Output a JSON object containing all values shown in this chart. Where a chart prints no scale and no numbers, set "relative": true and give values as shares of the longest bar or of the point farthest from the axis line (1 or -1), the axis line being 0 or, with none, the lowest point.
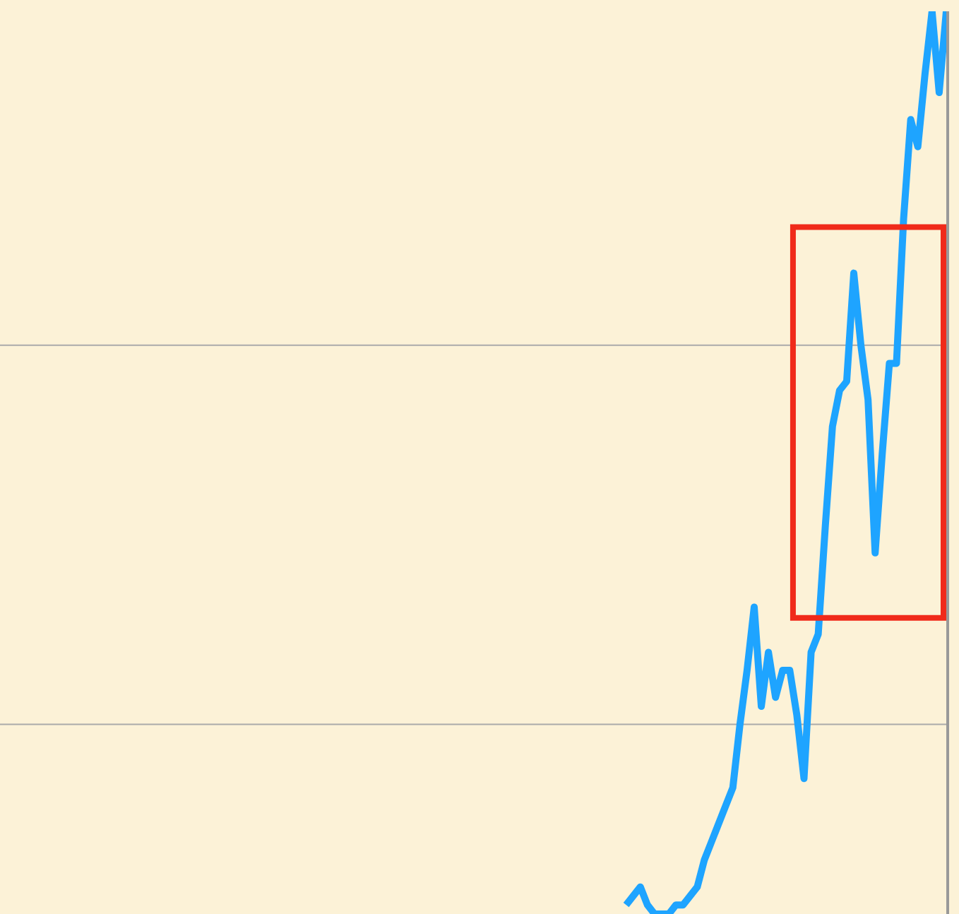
{
  "chart_data": {
    "type": "line",
    "relative": true,
    "categories": [
      null,
      null,
      null,
      null,
      null,
      null,
      null,
      null,
      null,
      null,
      null,
      null,
      null,
      null,
      null,
      null,
      null,
      null,
      null,
      null,
      null,
      null,
      null,
      null,
      null,
      null,
      null,
      null,
      null,
      null,
      null,
      null,
      null,
      null,
      null,
      null,
      null,
      null,
      null,
      null,
      null,
      null,
      null,
      null,
      null,
      null,
      null,
      null,
      null,
      null,
      null,
      null,
      null,
      null,
      null,
      null,
      null,
      null,
      null,
      null,
      null,
      null,
      null,
      null,
      null,
      null,
      null,
      null,
      null,
      null,
      null,
      null,
      null,
      null,
      null,
      null,
      null,
      null,
      null,
      null,
      null,
      null,
      null,
      null,
      null,
      null,
      null,
      null,
      null,
      null,
      null,
      null,
      null,
      null,
      null,
      null,
      null,
      null,
      null,
      null,
      null,
      null,
      null,
      null,
      null,
      null,
      null,
      null,
      null,
      null,
      null,
      null,
      null,
      null,
      null,
      null,
      null,
      null,
      null,
      null,
      null,
      null,
      null,
      null,
      null,
      null,
      null,
      null,
      null,
      null,
      null,
      null,
      null,
      null
    ],
    "series": [
      {
        "color": "#1ea4ff",
        "values": [
          null,
          null,
          null,
          null,
          null,
          null,
          null,
          null,
          null,
          null,
          null,
          null,
          null,
          null,
          null,
          null,
          null,
          null,
          null,
          null,
          null,
          null,
          null,
          null,
          null,
          null,
          null,
          null,
          null,
          null,
          null,
          null,
          null,
          null,
          null,
          null,
          null,
          null,
          null,
          null,
          null,
          null,
          null,
          null,
          null,
          null,
          null,
          null,
          null,
          null,
          null,
          null,
          null,
          null,
          null,
          null,
          null,
          null,
          null,
          null,
          null,
          null,
          null,
          null,
          null,
          null,
          null,
          null,
          null,
          null,
          null,
          null,
          null,
          null,
          null,
          null,
          null,
          null,
          null,
          null,
          null,
          null,
          null,
          null,
          null,
          null,
          null,
          null,
          0.01,
          0.02,
          0.03,
          0.01,
          0.0,
          0.0,
          0,
          0.01,
          0.01,
          0.02,
          0.03,
          0.06,
          0.08,
          0.1,
          0.12,
          0.14,
          0.21,
          0.27,
          0.34,
          0.23,
          0.29,
          0.24,
          0.27,
          0.27,
          0.22,
          0.15,
          0.29,
          0.31,
          0.43,
          0.54,
          0.58,
          0.59,
          0.71,
          0.63,
          0.57,
          0.4,
          0.51,
          0.61,
          0.61,
          0.77,
          0.88,
          0.85,
          0.93,
          1,
          0.91,
          1
        ]
      }
    ],
    "ref_lines": [
      {
        "axis": "y",
        "value": 0.63,
        "color": "#aaaaaa"
      },
      {
        "axis": "y",
        "value": 0.21,
        "color": "#aaaaaa"
      }
    ],
    "grid": false,
    "marker": "none",
    "line_style": "solid"
  }
}
